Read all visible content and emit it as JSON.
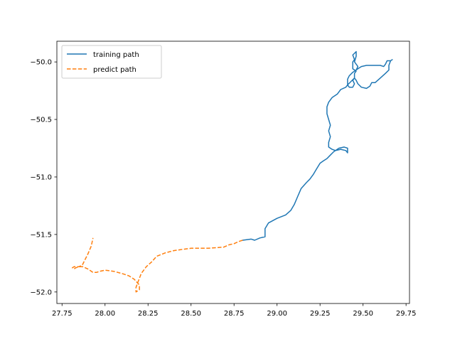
{
  "chart_data": {
    "type": "line",
    "title": "",
    "xlabel": "",
    "ylabel": "",
    "xlim": [
      27.72,
      29.77
    ],
    "ylim": [
      -52.1,
      -49.82
    ],
    "xticks": [
      27.75,
      28.0,
      28.25,
      28.5,
      28.75,
      29.0,
      29.25,
      29.5,
      29.75
    ],
    "xtick_labels": [
      "27.75",
      "28.00",
      "28.25",
      "28.50",
      "28.75",
      "29.00",
      "29.25",
      "29.50",
      "29.75"
    ],
    "yticks": [
      -50.0,
      -50.5,
      -51.0,
      -51.5,
      -52.0
    ],
    "ytick_labels": [
      "−50.0",
      "−50.5",
      "−51.0",
      "−51.5",
      "−52.0"
    ],
    "grid": false,
    "legend_position": "upper-left",
    "series": [
      {
        "name": "training path",
        "color": "#1f77b4",
        "dash": "solid",
        "points": [
          [
            28.8,
            -51.55
          ],
          [
            28.85,
            -51.54
          ],
          [
            28.87,
            -51.55
          ],
          [
            28.9,
            -51.53
          ],
          [
            28.93,
            -51.52
          ],
          [
            28.93,
            -51.45
          ],
          [
            28.95,
            -51.4
          ],
          [
            29.0,
            -51.36
          ],
          [
            29.05,
            -51.33
          ],
          [
            29.08,
            -51.29
          ],
          [
            29.1,
            -51.24
          ],
          [
            29.12,
            -51.17
          ],
          [
            29.14,
            -51.1
          ],
          [
            29.17,
            -51.05
          ],
          [
            29.19,
            -51.02
          ],
          [
            29.21,
            -50.98
          ],
          [
            29.23,
            -50.93
          ],
          [
            29.25,
            -50.88
          ],
          [
            29.27,
            -50.86
          ],
          [
            29.29,
            -50.84
          ],
          [
            29.31,
            -50.81
          ],
          [
            29.33,
            -50.78
          ],
          [
            29.36,
            -50.75
          ],
          [
            29.39,
            -50.74
          ],
          [
            29.41,
            -50.75
          ],
          [
            29.41,
            -50.79
          ],
          [
            29.4,
            -50.77
          ],
          [
            29.37,
            -50.76
          ],
          [
            29.34,
            -50.77
          ],
          [
            29.32,
            -50.76
          ],
          [
            29.3,
            -50.74
          ],
          [
            29.3,
            -50.7
          ],
          [
            29.31,
            -50.65
          ],
          [
            29.3,
            -50.6
          ],
          [
            29.31,
            -50.55
          ],
          [
            29.3,
            -50.5
          ],
          [
            29.29,
            -50.45
          ],
          [
            29.29,
            -50.39
          ],
          [
            29.3,
            -50.35
          ],
          [
            29.32,
            -50.31
          ],
          [
            29.35,
            -50.28
          ],
          [
            29.37,
            -50.24
          ],
          [
            29.4,
            -50.22
          ],
          [
            29.41,
            -50.2
          ],
          [
            29.43,
            -50.17
          ],
          [
            29.45,
            -50.14
          ],
          [
            29.45,
            -50.1
          ],
          [
            29.46,
            -50.08
          ],
          [
            29.44,
            -50.06
          ],
          [
            29.44,
            -50.0
          ],
          [
            29.45,
            -49.98
          ],
          [
            29.44,
            -49.94
          ],
          [
            29.46,
            -49.91
          ],
          [
            29.46,
            -49.95
          ],
          [
            29.45,
            -50.0
          ],
          [
            29.47,
            -50.04
          ],
          [
            29.46,
            -50.07
          ],
          [
            29.44,
            -50.09
          ],
          [
            29.42,
            -50.12
          ],
          [
            29.41,
            -50.15
          ],
          [
            29.41,
            -50.2
          ],
          [
            29.42,
            -50.22
          ],
          [
            29.44,
            -50.22
          ],
          [
            29.45,
            -50.19
          ],
          [
            29.44,
            -50.16
          ],
          [
            29.45,
            -50.14
          ],
          [
            29.46,
            -50.16
          ],
          [
            29.47,
            -50.19
          ],
          [
            29.49,
            -50.22
          ],
          [
            29.52,
            -50.23
          ],
          [
            29.54,
            -50.21
          ],
          [
            29.55,
            -50.18
          ],
          [
            29.57,
            -50.18
          ],
          [
            29.6,
            -50.14
          ],
          [
            29.63,
            -50.1
          ],
          [
            29.65,
            -50.07
          ],
          [
            29.65,
            -50.03
          ],
          [
            29.66,
            -49.99
          ],
          [
            29.67,
            -49.98
          ],
          [
            29.66,
            -49.99
          ],
          [
            29.64,
            -49.99
          ],
          [
            29.63,
            -50.02
          ],
          [
            29.62,
            -50.04
          ],
          [
            29.6,
            -50.03
          ],
          [
            29.56,
            -50.03
          ],
          [
            29.52,
            -50.03
          ],
          [
            29.49,
            -50.04
          ],
          [
            29.47,
            -50.06
          ],
          [
            29.46,
            -50.07
          ]
        ]
      },
      {
        "name": "predict path",
        "color": "#ff7f0e",
        "dash": "dashed",
        "points": [
          [
            28.8,
            -51.55
          ],
          [
            28.78,
            -51.56
          ],
          [
            28.75,
            -51.58
          ],
          [
            28.72,
            -51.59
          ],
          [
            28.69,
            -51.61
          ],
          [
            28.6,
            -51.62
          ],
          [
            28.5,
            -51.62
          ],
          [
            28.45,
            -51.63
          ],
          [
            28.4,
            -51.64
          ],
          [
            28.35,
            -51.66
          ],
          [
            28.3,
            -51.69
          ],
          [
            28.27,
            -51.74
          ],
          [
            28.24,
            -51.78
          ],
          [
            28.21,
            -51.84
          ],
          [
            28.19,
            -51.92
          ],
          [
            28.18,
            -51.96
          ],
          [
            28.18,
            -52.0
          ],
          [
            28.2,
            -51.98
          ],
          [
            28.2,
            -51.94
          ],
          [
            28.17,
            -51.89
          ],
          [
            28.14,
            -51.86
          ],
          [
            28.1,
            -51.84
          ],
          [
            28.05,
            -51.82
          ],
          [
            28.0,
            -51.81
          ],
          [
            27.97,
            -51.82
          ],
          [
            27.95,
            -51.83
          ],
          [
            27.93,
            -51.83
          ],
          [
            27.9,
            -51.8
          ],
          [
            27.87,
            -51.78
          ],
          [
            27.85,
            -51.78
          ],
          [
            27.83,
            -51.79
          ],
          [
            27.82,
            -51.8
          ],
          [
            27.81,
            -51.79
          ],
          [
            27.82,
            -51.78
          ],
          [
            27.85,
            -51.78
          ],
          [
            27.87,
            -51.76
          ],
          [
            27.88,
            -51.73
          ],
          [
            27.9,
            -51.67
          ],
          [
            27.92,
            -51.6
          ],
          [
            27.93,
            -51.53
          ]
        ]
      }
    ]
  }
}
